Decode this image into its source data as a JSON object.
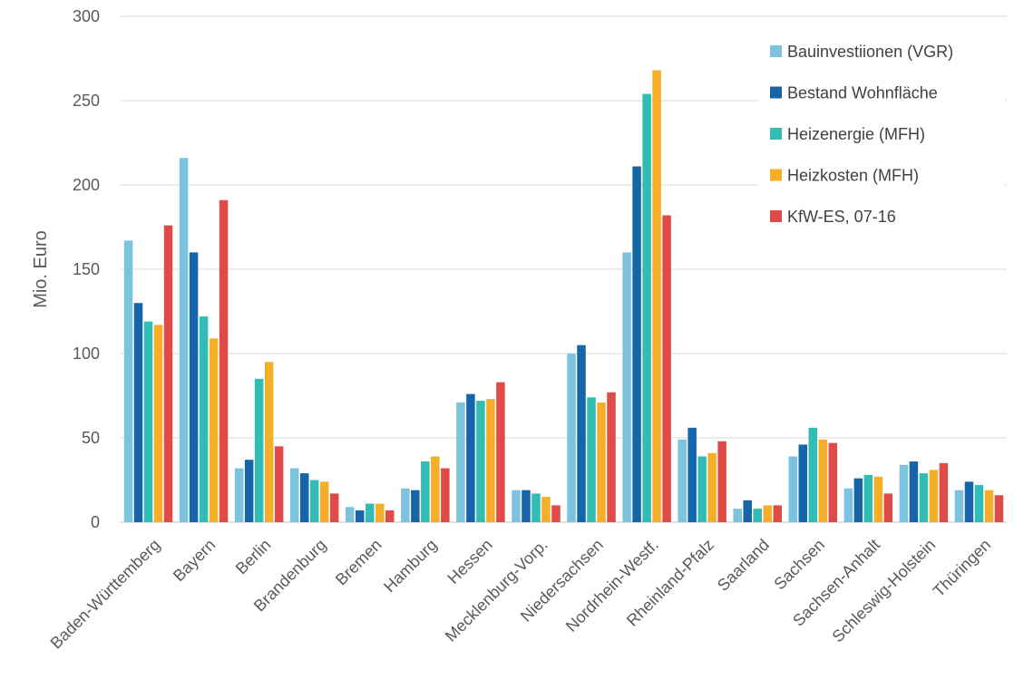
{
  "chart_data": {
    "type": "bar",
    "title": "",
    "xlabel": "",
    "ylabel": "Mio. Euro",
    "ylim": [
      0,
      300
    ],
    "yticks": [
      0,
      50,
      100,
      150,
      200,
      250,
      300
    ],
    "grid": true,
    "legend_position": "top-right",
    "categories": [
      "Baden-Württemberg",
      "Bayern",
      "Berlin",
      "Brandenburg",
      "Bremen",
      "Hamburg",
      "Hessen",
      "Mecklenburg-Vorp.",
      "Niedersachsen",
      "Nordrhein-Westf.",
      "Rheinland-Pfalz",
      "Saarland",
      "Sachsen",
      "Sachsen-Anhalt",
      "Schleswig-Holstein",
      "Thüringen"
    ],
    "series": [
      {
        "name": "Bauinvestiionen (VGR)",
        "color": "#7cc3e0",
        "values": [
          167,
          216,
          32,
          32,
          9,
          20,
          71,
          19,
          100,
          160,
          49,
          8,
          39,
          20,
          34,
          19
        ]
      },
      {
        "name": "Bestand Wohnfläche",
        "color": "#1565a8",
        "values": [
          130,
          160,
          37,
          29,
          7,
          19,
          76,
          19,
          105,
          211,
          56,
          13,
          46,
          26,
          36,
          24
        ]
      },
      {
        "name": "Heizenergie (MFH)",
        "color": "#31bcb6",
        "values": [
          119,
          122,
          85,
          25,
          11,
          36,
          72,
          17,
          74,
          254,
          39,
          8,
          56,
          28,
          29,
          22
        ]
      },
      {
        "name": "Heizkosten (MFH)",
        "color": "#f5ae28",
        "values": [
          117,
          109,
          95,
          24,
          11,
          39,
          73,
          15,
          71,
          268,
          41,
          10,
          49,
          27,
          31,
          19
        ]
      },
      {
        "name": "KfW-ES, 07-16",
        "color": "#e04b48",
        "values": [
          176,
          191,
          45,
          17,
          7,
          32,
          83,
          10,
          77,
          182,
          48,
          10,
          47,
          17,
          35,
          16
        ]
      }
    ]
  }
}
